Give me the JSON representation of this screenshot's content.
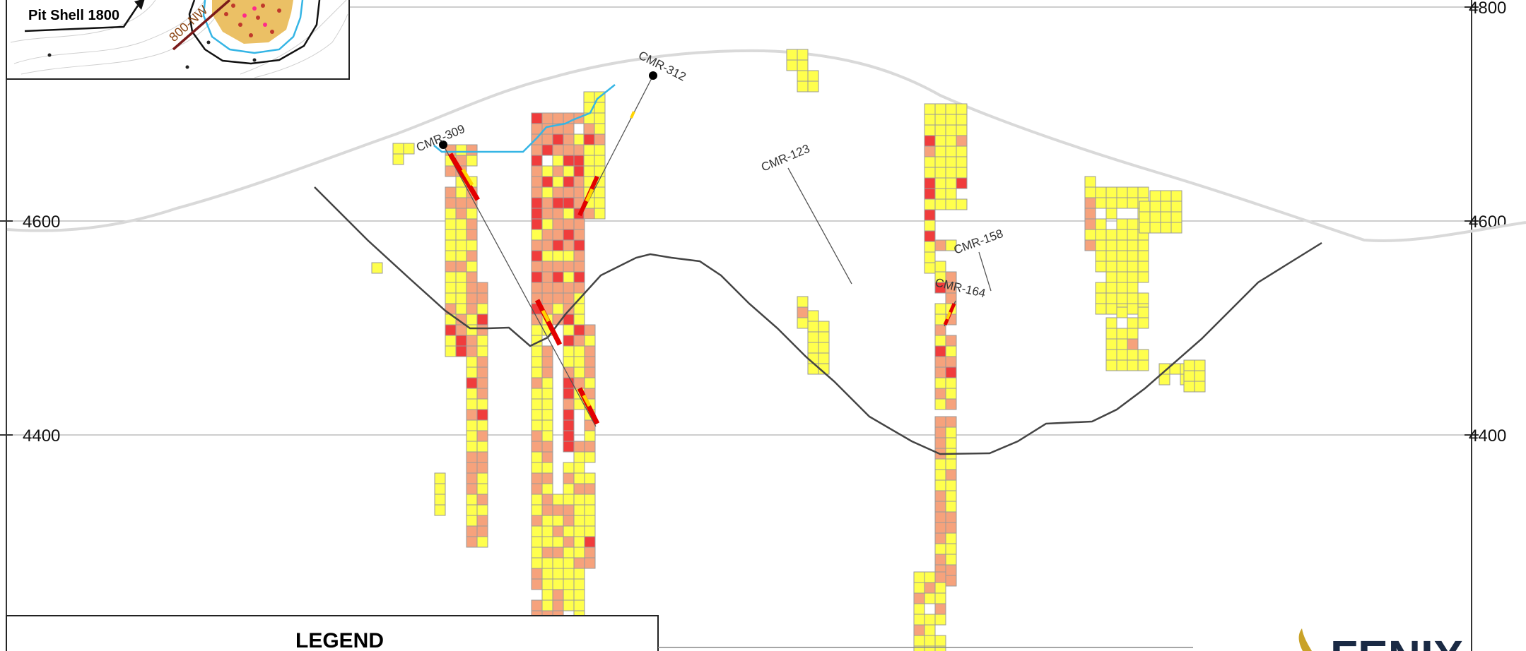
{
  "section": {
    "elevation_ticks": [
      "4800",
      "4600",
      "4400"
    ],
    "drill_holes": [
      "CMR-309",
      "CMR-312",
      "CMR-123",
      "CMR-158",
      "CMR-164"
    ]
  },
  "inset_map": {
    "label": "Pit Shell 1800",
    "section_line_label": "800-NW"
  },
  "legend": {
    "title": "LEGEND"
  },
  "brand": {
    "text": "FENIX"
  },
  "colors": {
    "low_grade": "#ffff4d",
    "mid_grade": "#f6a27c",
    "high_grade": "#f03c3c",
    "block_outline": "#9a9a9a",
    "topography": "#d9d9d9",
    "pit_shell": "#444444",
    "drill_trace": "#555555",
    "oxide_line": "#35b5e5",
    "brand_gold": "#c9a227",
    "brand_navy": "#1a2a44"
  }
}
